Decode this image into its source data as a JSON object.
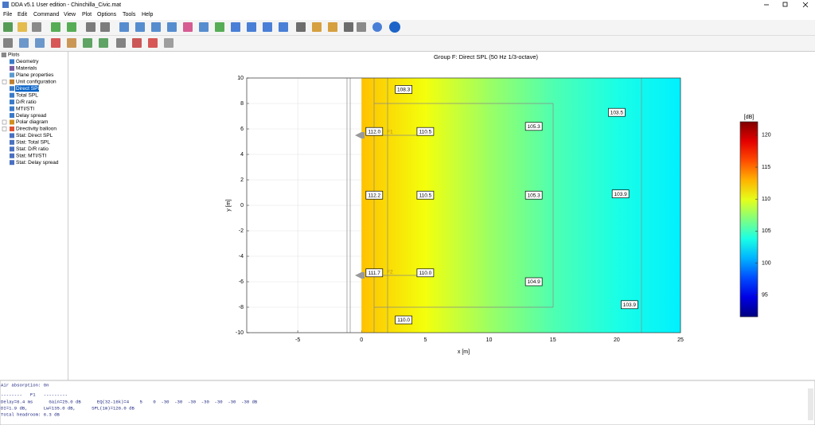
{
  "window": {
    "title": "DDA v5.1  User edition - Chinchilla_Civic.mat"
  },
  "menu": [
    "File",
    "Edit",
    "Command",
    "View",
    "Plot",
    "Options",
    "Tools",
    "Help"
  ],
  "tree": [
    "Plots",
    "Geometry",
    "Materials",
    "Plane properties",
    "Unit configuration",
    "Direct SPL",
    "Total SPL",
    "D/R ratio",
    "MTI/STI",
    "Delay spread",
    "Polar diagram",
    "Directivity balloon",
    "Stat: Direct SPL",
    "Stat: Total SPL",
    "Stat: D/R ratio",
    "Stat: MTI/STI",
    "Stat: Delay spread"
  ],
  "chart_data": {
    "type": "heatmap",
    "title": "Group F: Direct SPL (50 Hz 1/3-octave)",
    "xlabel": "x [m]",
    "ylabel": "y [m]",
    "xlim": [
      -9,
      25
    ],
    "ylim": [
      -10,
      10
    ],
    "xticks": [
      -5,
      0,
      5,
      10,
      15,
      20,
      25
    ],
    "yticks": [
      -10,
      -8,
      -6,
      -4,
      -2,
      0,
      2,
      4,
      6,
      8,
      10
    ],
    "grid": true,
    "field": {
      "x": [
        0,
        5,
        10,
        15,
        20,
        25
      ],
      "values": [
        112.5,
        110.3,
        107.7,
        105.4,
        103.8,
        102.6
      ]
    },
    "colorbar": {
      "label": "[dB]",
      "clim": [
        91.6,
        122.1
      ],
      "ticks": [
        95,
        100,
        105,
        110,
        115,
        120
      ]
    },
    "x": [
      3.3,
      1,
      5,
      13.5,
      20,
      1,
      5,
      13.5,
      20.3,
      1,
      5,
      13.5,
      21,
      3.3
    ],
    "y": [
      9.1,
      5.8,
      5.8,
      6.2,
      7.3,
      0.8,
      0.8,
      0.8,
      0.9,
      -5.3,
      -5.3,
      -6,
      -7.8,
      -9
    ],
    "values": [
      108.3,
      112,
      110.5,
      105.3,
      103.5,
      112.2,
      110.5,
      105.3,
      103.9,
      111.7,
      110,
      104.9,
      103.9,
      110
    ],
    "value_labels": [
      "108.3",
      "112.0",
      "110.5",
      "105.3",
      "103.5",
      "112.2",
      "110.5",
      "105.3",
      "103.9",
      "111.7",
      "110.0",
      "104.9",
      "103.9",
      "110.0"
    ],
    "sources": [
      "F1",
      "F2"
    ]
  },
  "console": [
    "Air absorption: On",
    "--------   F1   ---------",
    "Delay=6.4 ms      Gain=25.0 dB      EQ(32-16k)=4    5    0  -30  -30  -30  -30  -30  -30  -30 dB",
    "DI=1.9 dB,      Lw=135.0 dB,      SPL(1m)=126.0 dB",
    "Total headroom: 6.3 dB"
  ]
}
